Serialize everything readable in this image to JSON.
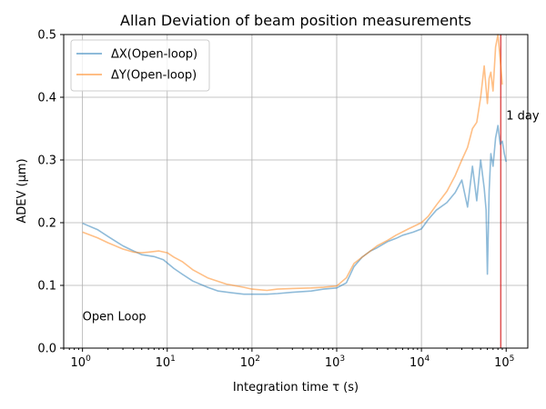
{
  "chart_data": {
    "type": "line",
    "title": "Allan Deviation of beam position measurements",
    "xlabel": "Integration time τ (s)",
    "ylabel": "ADEV (μm)",
    "x_scale": "log",
    "xlim": [
      0.6,
      180000
    ],
    "ylim": [
      0,
      0.5
    ],
    "grid": true,
    "legend_position": "top-left",
    "x_ticks": [
      {
        "value": 1,
        "base": "10",
        "exp": "0"
      },
      {
        "value": 10,
        "base": "10",
        "exp": "1"
      },
      {
        "value": 100,
        "base": "10",
        "exp": "2"
      },
      {
        "value": 1000,
        "base": "10",
        "exp": "3"
      },
      {
        "value": 10000,
        "base": "10",
        "exp": "4"
      },
      {
        "value": 100000,
        "base": "10",
        "exp": "5"
      }
    ],
    "y_ticks": [
      {
        "value": 0.0,
        "label": "0.0"
      },
      {
        "value": 0.1,
        "label": "0.1"
      },
      {
        "value": 0.2,
        "label": "0.2"
      },
      {
        "value": 0.3,
        "label": "0.3"
      },
      {
        "value": 0.4,
        "label": "0.4"
      },
      {
        "value": 0.5,
        "label": "0.5"
      }
    ],
    "series": [
      {
        "name": "ΔX(Open-loop)",
        "color": "#1f77b4",
        "x": [
          1,
          1.5,
          2,
          3,
          4,
          5,
          7,
          9,
          12,
          15,
          20,
          30,
          40,
          60,
          80,
          100,
          150,
          200,
          300,
          500,
          700,
          1000,
          1300,
          1600,
          2000,
          2500,
          3000,
          4000,
          5000,
          6000,
          8000,
          10000,
          12000,
          15000,
          20000,
          25000,
          30000,
          35000,
          40000,
          45000,
          50000,
          55000,
          58000,
          60000,
          63000,
          66000,
          70000,
          75000,
          80000,
          85000,
          90000,
          95000,
          100000
        ],
        "y": [
          0.199,
          0.189,
          0.178,
          0.163,
          0.155,
          0.149,
          0.146,
          0.141,
          0.127,
          0.118,
          0.107,
          0.097,
          0.091,
          0.088,
          0.086,
          0.086,
          0.086,
          0.087,
          0.089,
          0.091,
          0.094,
          0.096,
          0.104,
          0.13,
          0.145,
          0.155,
          0.16,
          0.17,
          0.175,
          0.18,
          0.185,
          0.19,
          0.205,
          0.22,
          0.232,
          0.248,
          0.268,
          0.225,
          0.29,
          0.235,
          0.3,
          0.255,
          0.22,
          0.118,
          0.25,
          0.31,
          0.29,
          0.335,
          0.355,
          0.325,
          0.33,
          0.31,
          0.297
        ]
      },
      {
        "name": "ΔY(Open-loop)",
        "color": "#ff7f0e",
        "x": [
          1,
          1.5,
          2,
          3,
          4,
          5,
          6,
          8,
          10,
          12,
          15,
          20,
          30,
          50,
          80,
          100,
          150,
          200,
          300,
          500,
          700,
          1000,
          1300,
          1600,
          2000,
          2500,
          3000,
          4000,
          5000,
          7000,
          10000,
          12000,
          15000,
          20000,
          25000,
          30000,
          35000,
          40000,
          45000,
          50000,
          55000,
          60000,
          63000,
          66000,
          70000,
          75000,
          80000,
          85000,
          90000
        ],
        "y": [
          0.185,
          0.176,
          0.168,
          0.158,
          0.153,
          0.152,
          0.153,
          0.155,
          0.152,
          0.145,
          0.138,
          0.125,
          0.112,
          0.102,
          0.097,
          0.094,
          0.092,
          0.094,
          0.095,
          0.096,
          0.097,
          0.099,
          0.112,
          0.135,
          0.145,
          0.155,
          0.163,
          0.172,
          0.18,
          0.19,
          0.2,
          0.21,
          0.228,
          0.25,
          0.275,
          0.3,
          0.32,
          0.35,
          0.36,
          0.4,
          0.45,
          0.39,
          0.43,
          0.44,
          0.41,
          0.48,
          0.5,
          0.46,
          0.42
        ]
      }
    ],
    "vertical_line": {
      "x": 86400,
      "color": "#d62728"
    },
    "annotations": [
      {
        "text": "1 day",
        "x": 100000,
        "y": 0.37
      },
      {
        "text": "Open Loop",
        "x": 1,
        "y": 0.05
      }
    ]
  }
}
